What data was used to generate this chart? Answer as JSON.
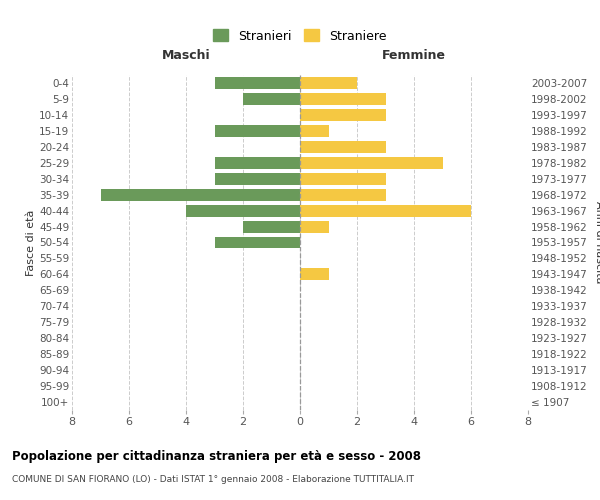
{
  "age_groups": [
    "0-4",
    "5-9",
    "10-14",
    "15-19",
    "20-24",
    "25-29",
    "30-34",
    "35-39",
    "40-44",
    "45-49",
    "50-54",
    "55-59",
    "60-64",
    "65-69",
    "70-74",
    "75-79",
    "80-84",
    "85-89",
    "90-94",
    "95-99",
    "100+"
  ],
  "birth_years": [
    "2003-2007",
    "1998-2002",
    "1993-1997",
    "1988-1992",
    "1983-1987",
    "1978-1982",
    "1973-1977",
    "1968-1972",
    "1963-1967",
    "1958-1962",
    "1953-1957",
    "1948-1952",
    "1943-1947",
    "1938-1942",
    "1933-1937",
    "1928-1932",
    "1923-1927",
    "1918-1922",
    "1913-1917",
    "1908-1912",
    "≤ 1907"
  ],
  "maschi": [
    3,
    2,
    0,
    3,
    0,
    3,
    3,
    7,
    4,
    2,
    3,
    0,
    0,
    0,
    0,
    0,
    0,
    0,
    0,
    0,
    0
  ],
  "femmine": [
    2,
    3,
    3,
    1,
    3,
    5,
    3,
    3,
    6,
    1,
    0,
    0,
    1,
    0,
    0,
    0,
    0,
    0,
    0,
    0,
    0
  ],
  "maschi_color": "#6a9a5a",
  "femmine_color": "#f5c842",
  "xlim": 8,
  "title": "Popolazione per cittadinanza straniera per età e sesso - 2008",
  "subtitle": "COMUNE DI SAN FIORANO (LO) - Dati ISTAT 1° gennaio 2008 - Elaborazione TUTTITALIA.IT",
  "ylabel_left": "Fasce di età",
  "ylabel_right": "Anni di nascita",
  "label_maschi": "Maschi",
  "label_femmine": "Femmine",
  "legend_stranieri": "Stranieri",
  "legend_straniere": "Straniere",
  "background_color": "#ffffff",
  "grid_color": "#cccccc",
  "bar_height": 0.75
}
